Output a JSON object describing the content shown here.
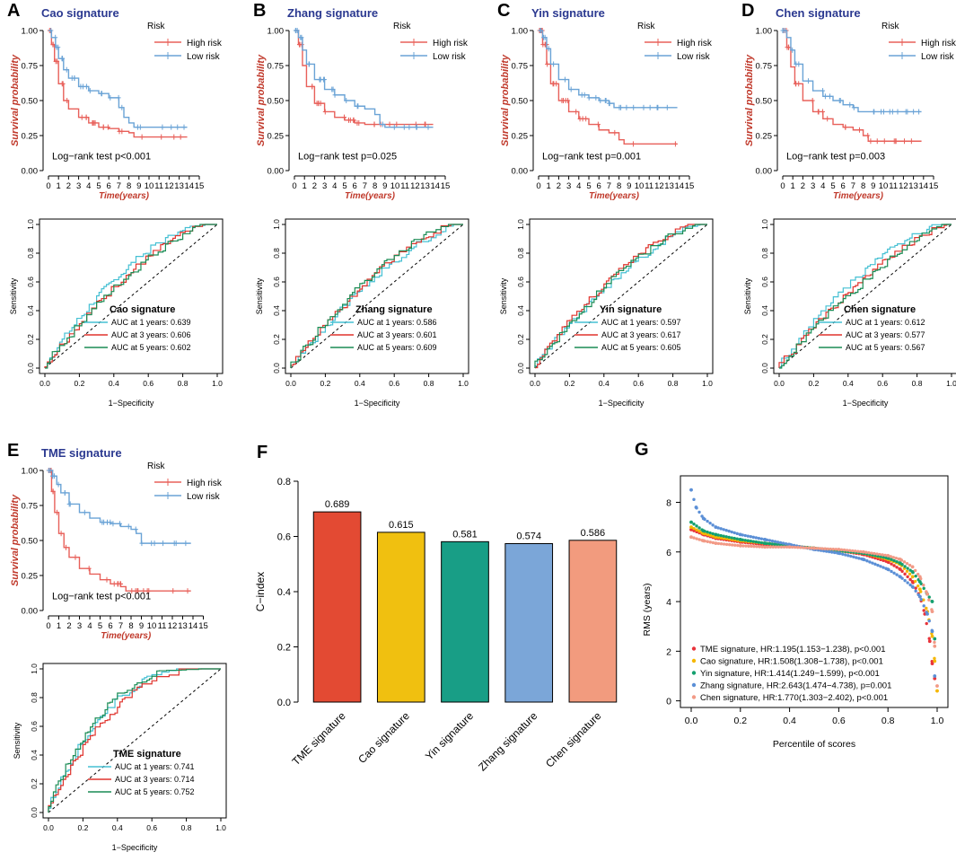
{
  "colors": {
    "high": "#e8605a",
    "low": "#6aa3d6",
    "roc1": "#45c0d3",
    "roc3": "#e0332d",
    "roc5": "#1a8c55",
    "title": "#2b3990",
    "axis_title": "#c0392b",
    "bar_outline": "#000000"
  },
  "km_common": {
    "ylabel": "Survival probability",
    "xlabel": "Time(years)",
    "legend_title": "Risk",
    "legend_high": "High risk",
    "legend_low": "Low risk",
    "x_ticks": [
      "0",
      "1",
      "2",
      "3",
      "4",
      "5",
      "6",
      "7",
      "8",
      "9",
      "10",
      "11",
      "12",
      "13",
      "14",
      "15"
    ],
    "y_ticks": [
      "0.00",
      "0.25",
      "0.50",
      "0.75",
      "1.00"
    ]
  },
  "roc_common": {
    "xlabel": "1−Specificity",
    "ylabel": "Sensitivity",
    "ticks": [
      "0.0",
      "0.2",
      "0.4",
      "0.6",
      "0.8",
      "1.0"
    ]
  },
  "panels": [
    {
      "letter": "A",
      "title": "Cao signature",
      "pvalue": "Log−rank test p<0.001",
      "high": [
        [
          0,
          1.0
        ],
        [
          0.3,
          0.9
        ],
        [
          0.6,
          0.78
        ],
        [
          1,
          0.62
        ],
        [
          1.5,
          0.5
        ],
        [
          2,
          0.44
        ],
        [
          3,
          0.38
        ],
        [
          4,
          0.34
        ],
        [
          5,
          0.31
        ],
        [
          6,
          0.3
        ],
        [
          7,
          0.28
        ],
        [
          8,
          0.27
        ],
        [
          8.5,
          0.24
        ],
        [
          10,
          0.24
        ],
        [
          12,
          0.24
        ],
        [
          13.8,
          0.24
        ]
      ],
      "low": [
        [
          0,
          1.0
        ],
        [
          0.3,
          0.95
        ],
        [
          0.7,
          0.88
        ],
        [
          1,
          0.8
        ],
        [
          1.5,
          0.72
        ],
        [
          2,
          0.66
        ],
        [
          3,
          0.6
        ],
        [
          4,
          0.57
        ],
        [
          5,
          0.55
        ],
        [
          6,
          0.52
        ],
        [
          7,
          0.45
        ],
        [
          7.5,
          0.38
        ],
        [
          8,
          0.34
        ],
        [
          8.5,
          0.31
        ],
        [
          13.8,
          0.31
        ]
      ],
      "roc_title": "Cao signature",
      "auc": [
        "AUC at 1 years: 0.639",
        "AUC at 3 years: 0.606",
        "AUC at 5 years: 0.602"
      ]
    },
    {
      "letter": "B",
      "title": "Zhang signature",
      "pvalue": "Log−rank test p=0.025",
      "high": [
        [
          0,
          1.0
        ],
        [
          0.4,
          0.9
        ],
        [
          0.8,
          0.75
        ],
        [
          1.2,
          0.6
        ],
        [
          2,
          0.48
        ],
        [
          3,
          0.42
        ],
        [
          4,
          0.38
        ],
        [
          5,
          0.36
        ],
        [
          6,
          0.34
        ],
        [
          7,
          0.33
        ],
        [
          10,
          0.33
        ],
        [
          13.8,
          0.33
        ]
      ],
      "low": [
        [
          0,
          1.0
        ],
        [
          0.4,
          0.95
        ],
        [
          0.8,
          0.86
        ],
        [
          1.2,
          0.76
        ],
        [
          2,
          0.65
        ],
        [
          3,
          0.58
        ],
        [
          4,
          0.54
        ],
        [
          5,
          0.5
        ],
        [
          6,
          0.46
        ],
        [
          7,
          0.44
        ],
        [
          8,
          0.4
        ],
        [
          8.5,
          0.33
        ],
        [
          9,
          0.31
        ],
        [
          13.8,
          0.31
        ]
      ],
      "roc_title": "Zhang signature",
      "auc": [
        "AUC at 1 years: 0.586",
        "AUC at 3 years: 0.601",
        "AUC at 5 years: 0.609"
      ]
    },
    {
      "letter": "C",
      "title": "Yin signature",
      "pvalue": "Log−rank test p=0.001",
      "high": [
        [
          0,
          1.0
        ],
        [
          0.4,
          0.9
        ],
        [
          0.8,
          0.76
        ],
        [
          1.2,
          0.62
        ],
        [
          2,
          0.5
        ],
        [
          3,
          0.42
        ],
        [
          4,
          0.37
        ],
        [
          5,
          0.33
        ],
        [
          6,
          0.29
        ],
        [
          7,
          0.27
        ],
        [
          8,
          0.22
        ],
        [
          8.5,
          0.19
        ],
        [
          10,
          0.19
        ],
        [
          13.8,
          0.19
        ]
      ],
      "low": [
        [
          0,
          1.0
        ],
        [
          0.4,
          0.95
        ],
        [
          0.8,
          0.87
        ],
        [
          1.2,
          0.76
        ],
        [
          2,
          0.65
        ],
        [
          3,
          0.58
        ],
        [
          4,
          0.54
        ],
        [
          5,
          0.52
        ],
        [
          6,
          0.5
        ],
        [
          7,
          0.48
        ],
        [
          7.5,
          0.45
        ],
        [
          10,
          0.45
        ],
        [
          13.8,
          0.45
        ]
      ],
      "roc_title": "Yin signature",
      "auc": [
        "AUC at 1 years: 0.597",
        "AUC at 3 years: 0.617",
        "AUC at 5 years: 0.605"
      ]
    },
    {
      "letter": "D",
      "title": "Chen signature",
      "pvalue": "Log−rank test p=0.003",
      "high": [
        [
          0,
          1.0
        ],
        [
          0.4,
          0.88
        ],
        [
          0.8,
          0.74
        ],
        [
          1.2,
          0.62
        ],
        [
          2,
          0.5
        ],
        [
          3,
          0.42
        ],
        [
          4,
          0.37
        ],
        [
          5,
          0.33
        ],
        [
          6,
          0.31
        ],
        [
          7,
          0.29
        ],
        [
          8,
          0.25
        ],
        [
          8.5,
          0.21
        ],
        [
          10,
          0.21
        ],
        [
          13.8,
          0.21
        ]
      ],
      "low": [
        [
          0,
          1.0
        ],
        [
          0.4,
          0.95
        ],
        [
          0.8,
          0.86
        ],
        [
          1.2,
          0.76
        ],
        [
          2,
          0.64
        ],
        [
          3,
          0.57
        ],
        [
          4,
          0.53
        ],
        [
          5,
          0.5
        ],
        [
          6,
          0.47
        ],
        [
          7,
          0.45
        ],
        [
          7.5,
          0.42
        ],
        [
          10,
          0.42
        ],
        [
          13.8,
          0.42
        ]
      ],
      "roc_title": "Chen signature",
      "auc": [
        "AUC at 1 years: 0.612",
        "AUC at 3 years: 0.577",
        "AUC at 5 years: 0.567"
      ]
    },
    {
      "letter": "E",
      "title": "TME signature",
      "pvalue": "Log−rank test p<0.001",
      "high": [
        [
          0,
          1.0
        ],
        [
          0.3,
          0.85
        ],
        [
          0.6,
          0.7
        ],
        [
          1,
          0.55
        ],
        [
          1.5,
          0.45
        ],
        [
          2,
          0.38
        ],
        [
          3,
          0.3
        ],
        [
          4,
          0.26
        ],
        [
          5,
          0.22
        ],
        [
          6,
          0.19
        ],
        [
          7,
          0.17
        ],
        [
          7.5,
          0.14
        ],
        [
          10,
          0.14
        ],
        [
          13.8,
          0.14
        ]
      ],
      "low": [
        [
          0,
          1.0
        ],
        [
          0.4,
          0.96
        ],
        [
          0.8,
          0.9
        ],
        [
          1.2,
          0.84
        ],
        [
          2,
          0.76
        ],
        [
          3,
          0.7
        ],
        [
          4,
          0.66
        ],
        [
          5,
          0.63
        ],
        [
          6,
          0.62
        ],
        [
          7,
          0.6
        ],
        [
          8,
          0.58
        ],
        [
          8.5,
          0.55
        ],
        [
          9,
          0.48
        ],
        [
          13.8,
          0.48
        ]
      ],
      "roc_title": "TME signature",
      "auc": [
        "AUC at 1 years: 0.741",
        "AUC at 3 years: 0.714",
        "AUC at 5 years: 0.752"
      ]
    }
  ],
  "panel_f": {
    "letter": "F",
    "chart_data": {
      "type": "bar",
      "ylabel": "C−index",
      "categories": [
        "TME signature",
        "Cao signature",
        "Yin signature",
        "Zhang signature",
        "Chen signature"
      ],
      "values": [
        0.689,
        0.615,
        0.581,
        0.574,
        0.586
      ],
      "value_labels": [
        "0.689",
        "0.615",
        "0.581",
        "0.574",
        "0.586"
      ],
      "colors": [
        "#e34a33",
        "#f0c010",
        "#189e86",
        "#7ba6d8",
        "#f29b7e"
      ],
      "ylim": [
        0,
        0.8
      ],
      "y_ticks": [
        "0.0",
        "0.2",
        "0.4",
        "0.6",
        "0.8"
      ]
    }
  },
  "panel_g": {
    "letter": "G",
    "chart_data": {
      "type": "scatter",
      "xlabel": "Percentile of scores",
      "ylabel": "RMS (years)",
      "x_ticks": [
        "0.0",
        "0.2",
        "0.4",
        "0.6",
        "0.8",
        "1.0"
      ],
      "y_ticks": [
        "0",
        "2",
        "4",
        "6",
        "8"
      ],
      "series": [
        {
          "name": "TME signature",
          "label": "TME signature, HR:1.195(1.153−1.238), p<0.001",
          "color": "#e8333a",
          "points": [
            [
              0.0,
              6.9
            ],
            [
              0.05,
              6.7
            ],
            [
              0.1,
              6.55
            ],
            [
              0.2,
              6.4
            ],
            [
              0.3,
              6.3
            ],
            [
              0.4,
              6.25
            ],
            [
              0.5,
              6.15
            ],
            [
              0.6,
              6.05
            ],
            [
              0.7,
              5.9
            ],
            [
              0.8,
              5.6
            ],
            [
              0.85,
              5.3
            ],
            [
              0.9,
              4.8
            ],
            [
              0.93,
              4.2
            ],
            [
              0.95,
              3.5
            ],
            [
              0.97,
              2.4
            ],
            [
              0.98,
              1.5
            ],
            [
              0.99,
              0.9
            ]
          ]
        },
        {
          "name": "Cao signature",
          "label": "Cao signature, HR:1.508(1.308−1.738), p<0.001",
          "color": "#f5b700",
          "points": [
            [
              0.0,
              7.0
            ],
            [
              0.05,
              6.75
            ],
            [
              0.1,
              6.6
            ],
            [
              0.2,
              6.45
            ],
            [
              0.3,
              6.35
            ],
            [
              0.4,
              6.25
            ],
            [
              0.5,
              6.15
            ],
            [
              0.6,
              6.05
            ],
            [
              0.7,
              5.95
            ],
            [
              0.8,
              5.7
            ],
            [
              0.85,
              5.5
            ],
            [
              0.9,
              5.0
            ],
            [
              0.93,
              4.5
            ],
            [
              0.96,
              3.6
            ],
            [
              0.98,
              2.6
            ],
            [
              0.99,
              1.6
            ],
            [
              1.0,
              0.4
            ]
          ]
        },
        {
          "name": "Yin signature",
          "label": "Yin signature, HR:1.414(1.249−1.599), p<0.001",
          "color": "#14a06f",
          "points": [
            [
              0.0,
              7.2
            ],
            [
              0.05,
              6.85
            ],
            [
              0.1,
              6.7
            ],
            [
              0.2,
              6.5
            ],
            [
              0.3,
              6.35
            ],
            [
              0.4,
              6.25
            ],
            [
              0.5,
              6.15
            ],
            [
              0.6,
              6.05
            ],
            [
              0.7,
              5.95
            ],
            [
              0.8,
              5.75
            ],
            [
              0.85,
              5.55
            ],
            [
              0.9,
              5.2
            ],
            [
              0.93,
              4.8
            ],
            [
              0.96,
              4.3
            ],
            [
              0.98,
              4.0
            ],
            [
              0.99,
              2.5
            ]
          ]
        },
        {
          "name": "Zhang signature",
          "label": "Zhang signature, HR:2.643(1.474−4.738), p=0.001",
          "color": "#5b8fd6",
          "points": [
            [
              0.0,
              8.5
            ],
            [
              0.02,
              7.8
            ],
            [
              0.05,
              7.35
            ],
            [
              0.1,
              7.0
            ],
            [
              0.2,
              6.7
            ],
            [
              0.3,
              6.5
            ],
            [
              0.4,
              6.3
            ],
            [
              0.5,
              6.1
            ],
            [
              0.6,
              5.95
            ],
            [
              0.7,
              5.7
            ],
            [
              0.8,
              5.3
            ],
            [
              0.85,
              5.0
            ],
            [
              0.9,
              4.6
            ],
            [
              0.93,
              4.2
            ],
            [
              0.96,
              3.5
            ],
            [
              0.98,
              2.8
            ],
            [
              0.99,
              1.0
            ]
          ]
        },
        {
          "name": "Chen signature",
          "label": "Chen signature, HR:1.770(1.303−2.402), p<0.001",
          "color": "#f29a86",
          "points": [
            [
              0.0,
              6.6
            ],
            [
              0.05,
              6.45
            ],
            [
              0.1,
              6.35
            ],
            [
              0.2,
              6.25
            ],
            [
              0.3,
              6.2
            ],
            [
              0.4,
              6.2
            ],
            [
              0.5,
              6.15
            ],
            [
              0.6,
              6.1
            ],
            [
              0.7,
              6.0
            ],
            [
              0.8,
              5.85
            ],
            [
              0.85,
              5.7
            ],
            [
              0.9,
              5.4
            ],
            [
              0.93,
              5.0
            ],
            [
              0.96,
              4.3
            ],
            [
              0.98,
              3.6
            ],
            [
              0.99,
              2.2
            ],
            [
              1.0,
              0.6
            ]
          ]
        }
      ]
    }
  }
}
